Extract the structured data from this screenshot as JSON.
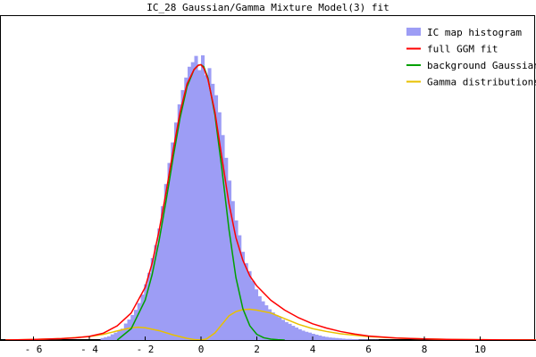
{
  "chart_data": {
    "type": "histogram-line",
    "title": "IC_28 Gaussian/Gamma Mixture Model(3) fit",
    "xlabel": "",
    "ylabel": "",
    "xlim": [
      -7.2,
      12.0
    ],
    "ylim": [
      0,
      1.0
    ],
    "grid": false,
    "legend_position": "top-right",
    "x_ticks": [
      {
        "value": -6,
        "label": "- 6"
      },
      {
        "value": -4,
        "label": "- 4"
      },
      {
        "value": -2,
        "label": "- 2"
      },
      {
        "value": 0,
        "label": "0"
      },
      {
        "value": 2,
        "label": "2"
      },
      {
        "value": 4,
        "label": "4"
      },
      {
        "value": 6,
        "label": "6"
      },
      {
        "value": 8,
        "label": "8"
      },
      {
        "value": 10,
        "label": "10"
      }
    ],
    "legend": [
      {
        "name": "IC map histogram",
        "color": "#9d9df5",
        "kind": "box"
      },
      {
        "name": "full GGM fit",
        "color": "#ff0000",
        "kind": "line"
      },
      {
        "name": "background Gaussian",
        "color": "#00a000",
        "kind": "line"
      },
      {
        "name": "Gamma distributions",
        "color": "#e8c000",
        "kind": "line"
      }
    ],
    "histogram": {
      "name": "IC map histogram",
      "color": "#9d9df5",
      "bin_width": 0.12,
      "bin_centers": [
        -3.54,
        -3.42,
        -3.3,
        -3.18,
        -3.06,
        -2.94,
        -2.82,
        -2.7,
        -2.58,
        -2.46,
        -2.34,
        -2.22,
        -2.1,
        -1.98,
        -1.86,
        -1.74,
        -1.62,
        -1.5,
        -1.38,
        -1.26,
        -1.14,
        -1.02,
        -0.9,
        -0.78,
        -0.66,
        -0.54,
        -0.42,
        -0.3,
        -0.18,
        -0.06,
        0.06,
        0.18,
        0.3,
        0.42,
        0.54,
        0.66,
        0.78,
        0.9,
        1.02,
        1.14,
        1.26,
        1.38,
        1.5,
        1.62,
        1.74,
        1.86,
        1.98,
        2.1,
        2.22,
        2.34,
        2.46,
        2.58,
        2.7,
        2.82,
        2.94,
        3.06,
        3.18,
        3.3,
        3.42,
        3.54,
        3.66,
        3.78,
        3.9,
        4.02,
        4.14,
        4.26,
        4.38,
        4.5,
        4.62,
        4.74,
        4.86,
        4.98,
        5.1,
        5.22,
        5.34,
        5.46,
        5.58,
        5.7,
        5.82,
        5.94,
        6.06,
        6.18,
        6.3
      ],
      "values": [
        0.007,
        0.01,
        0.013,
        0.02,
        0.026,
        0.033,
        0.04,
        0.058,
        0.072,
        0.088,
        0.106,
        0.13,
        0.16,
        0.196,
        0.236,
        0.288,
        0.334,
        0.392,
        0.47,
        0.548,
        0.622,
        0.694,
        0.764,
        0.828,
        0.878,
        0.922,
        0.96,
        0.976,
        0.998,
        0.948,
        1.0,
        0.93,
        0.955,
        0.9,
        0.86,
        0.8,
        0.72,
        0.64,
        0.56,
        0.488,
        0.42,
        0.368,
        0.31,
        0.27,
        0.242,
        0.208,
        0.178,
        0.154,
        0.136,
        0.122,
        0.108,
        0.097,
        0.088,
        0.08,
        0.071,
        0.063,
        0.057,
        0.05,
        0.044,
        0.038,
        0.033,
        0.029,
        0.026,
        0.022,
        0.019,
        0.016,
        0.013,
        0.011,
        0.009,
        0.008,
        0.007,
        0.006,
        0.005,
        0.004,
        0.004,
        0.003,
        0.003,
        0.002,
        0.002,
        0.002,
        0.001,
        0.001,
        0.001
      ]
    },
    "series": [
      {
        "name": "full GGM fit",
        "color": "#ff0000",
        "x": [
          -7.0,
          -6.0,
          -5.0,
          -4.5,
          -4.0,
          -3.5,
          -3.0,
          -2.5,
          -2.0,
          -1.75,
          -1.5,
          -1.25,
          -1.0,
          -0.75,
          -0.5,
          -0.25,
          -0.1,
          0.0,
          0.1,
          0.25,
          0.5,
          0.75,
          1.0,
          1.25,
          1.5,
          1.75,
          2.0,
          2.5,
          3.0,
          3.5,
          4.0,
          4.5,
          5.0,
          5.5,
          6.0,
          7.0,
          8.0,
          9.0,
          10.0,
          11.0,
          12.0
        ],
        "y": [
          0.0,
          0.002,
          0.005,
          0.008,
          0.013,
          0.024,
          0.05,
          0.095,
          0.185,
          0.27,
          0.385,
          0.52,
          0.665,
          0.8,
          0.9,
          0.95,
          0.965,
          0.967,
          0.955,
          0.915,
          0.8,
          0.64,
          0.48,
          0.36,
          0.28,
          0.225,
          0.19,
          0.14,
          0.105,
          0.078,
          0.057,
          0.042,
          0.03,
          0.021,
          0.014,
          0.007,
          0.004,
          0.002,
          0.001,
          0.0005,
          0.0
        ]
      },
      {
        "name": "background Gaussian",
        "color": "#00a000",
        "x": [
          -3.0,
          -2.5,
          -2.0,
          -1.75,
          -1.5,
          -1.25,
          -1.0,
          -0.75,
          -0.5,
          -0.25,
          -0.1,
          0.0,
          0.1,
          0.25,
          0.5,
          0.75,
          1.0,
          1.25,
          1.5,
          1.75,
          2.0,
          2.25,
          2.5,
          2.75,
          3.0
        ],
        "y": [
          0.0,
          0.04,
          0.14,
          0.23,
          0.35,
          0.49,
          0.64,
          0.78,
          0.89,
          0.95,
          0.965,
          0.967,
          0.96,
          0.92,
          0.79,
          0.6,
          0.39,
          0.22,
          0.11,
          0.05,
          0.02,
          0.008,
          0.003,
          0.001,
          0.0
        ]
      },
      {
        "name": "Gamma distributions",
        "color": "#e8c000",
        "x": [
          -7.0,
          -6.0,
          -5.0,
          -4.0,
          -3.5,
          -3.0,
          -2.5,
          -2.25,
          -2.0,
          -1.5,
          -1.0,
          -0.5,
          -0.2,
          0.0,
          0.2,
          0.5,
          0.75,
          1.0,
          1.25,
          1.5,
          1.75,
          2.0,
          2.5,
          3.0,
          3.5,
          4.0,
          4.5,
          5.0,
          6.0,
          7.0,
          8.0,
          9.0,
          10.0,
          11.0,
          12.0
        ],
        "y": [
          0.0,
          0.002,
          0.005,
          0.012,
          0.02,
          0.032,
          0.043,
          0.045,
          0.043,
          0.033,
          0.018,
          0.006,
          0.001,
          0.0,
          0.004,
          0.025,
          0.055,
          0.085,
          0.1,
          0.107,
          0.108,
          0.105,
          0.095,
          0.075,
          0.055,
          0.04,
          0.03,
          0.022,
          0.012,
          0.007,
          0.004,
          0.002,
          0.001,
          0.0005,
          0.0
        ]
      }
    ]
  }
}
